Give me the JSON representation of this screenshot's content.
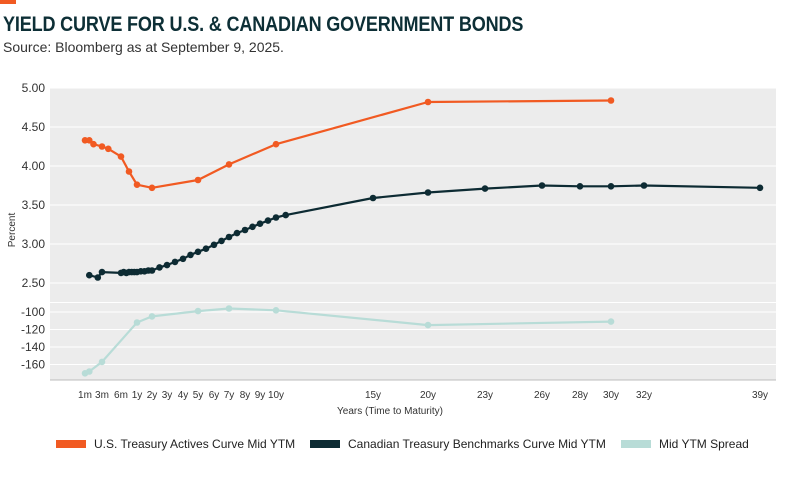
{
  "title": "YIELD CURVE FOR U.S. & CANADIAN GOVERNMENT BONDS",
  "subtitle": "Source: Bloomberg as at September 9, 2025.",
  "colors": {
    "accent": "#f15a22",
    "us": "#f15a22",
    "ca": "#0d2b33",
    "spread": "#b8dcd7",
    "plot_bg": "#ececec",
    "grid": "#ffffff",
    "title": "#0d2f36"
  },
  "chart_data": {
    "type": "line",
    "xlabel": "Years (Time to Maturity)",
    "ylabel": "Percent",
    "x_ticks": [
      "1m",
      "3m",
      "6m",
      "1y",
      "2y",
      "3y",
      "4y",
      "5y",
      "6y",
      "7y",
      "8y",
      "9y",
      "10y",
      "15y",
      "20y",
      "23y",
      "26y",
      "28y",
      "30y",
      "32y",
      "39y"
    ],
    "y_ticks_upper": [
      "5.00",
      "4.50",
      "4.00",
      "3.50",
      "3.00",
      "2.50"
    ],
    "y_ticks_lower": [
      "-100",
      "-120",
      "-140",
      "-160"
    ],
    "ylim_upper": [
      2.3,
      5.0
    ],
    "ylim_lower": [
      -172,
      -97
    ],
    "grid": true,
    "legend_position": "bottom",
    "series": [
      {
        "name": "U.S. Treasury Actives Curve Mid YTM",
        "axis": "upper",
        "points": [
          {
            "x": 1,
            "y": 4.33
          },
          {
            "x": 1.5,
            "y": 4.33
          },
          {
            "x": 2,
            "y": 4.28
          },
          {
            "x": 3,
            "y": 4.25
          },
          {
            "x": 4,
            "y": 4.22
          },
          {
            "x": 6,
            "y": 4.12
          },
          {
            "x": 9,
            "y": 3.93
          },
          {
            "x": 12,
            "y": 3.76
          },
          {
            "x": 24,
            "y": 3.72
          },
          {
            "x": 60,
            "y": 3.82
          },
          {
            "x": 84,
            "y": 4.02
          },
          {
            "x": 120,
            "y": 4.28
          },
          {
            "x": 252,
            "y": 4.82
          },
          {
            "x": 360,
            "y": 4.84
          }
        ]
      },
      {
        "name": "Canadian Treasury Benchmarks Curve Mid YTM",
        "axis": "upper",
        "points": [
          {
            "x": 1.5,
            "y": 2.6
          },
          {
            "x": 2.5,
            "y": 2.57
          },
          {
            "x": 3,
            "y": 2.64
          },
          {
            "x": 6,
            "y": 2.63
          },
          {
            "x": 7,
            "y": 2.64
          },
          {
            "x": 8,
            "y": 2.63
          },
          {
            "x": 9,
            "y": 2.64
          },
          {
            "x": 10,
            "y": 2.64
          },
          {
            "x": 11,
            "y": 2.64
          },
          {
            "x": 12,
            "y": 2.64
          },
          {
            "x": 15,
            "y": 2.65
          },
          {
            "x": 18,
            "y": 2.65
          },
          {
            "x": 21,
            "y": 2.66
          },
          {
            "x": 24,
            "y": 2.66
          },
          {
            "x": 30,
            "y": 2.7
          },
          {
            "x": 36,
            "y": 2.73
          },
          {
            "x": 42,
            "y": 2.77
          },
          {
            "x": 48,
            "y": 2.81
          },
          {
            "x": 54,
            "y": 2.86
          },
          {
            "x": 60,
            "y": 2.9
          },
          {
            "x": 66,
            "y": 2.94
          },
          {
            "x": 72,
            "y": 2.99
          },
          {
            "x": 78,
            "y": 3.04
          },
          {
            "x": 84,
            "y": 3.09
          },
          {
            "x": 90,
            "y": 3.14
          },
          {
            "x": 96,
            "y": 3.18
          },
          {
            "x": 102,
            "y": 3.22
          },
          {
            "x": 108,
            "y": 3.26
          },
          {
            "x": 114,
            "y": 3.3
          },
          {
            "x": 120,
            "y": 3.34
          },
          {
            "x": 126,
            "y": 3.37
          },
          {
            "x": 180,
            "y": 3.59
          },
          {
            "x": 252,
            "y": 3.66
          },
          {
            "x": 276,
            "y": 3.71
          },
          {
            "x": 312,
            "y": 3.75
          },
          {
            "x": 336,
            "y": 3.74
          },
          {
            "x": 360,
            "y": 3.74
          },
          {
            "x": 384,
            "y": 3.75
          },
          {
            "x": 468,
            "y": 3.72
          }
        ]
      },
      {
        "name": "Mid YTM Spread",
        "axis": "lower",
        "points": [
          {
            "x": 1,
            "y": -170
          },
          {
            "x": 1.5,
            "y": -168
          },
          {
            "x": 3,
            "y": -157
          },
          {
            "x": 12,
            "y": -112
          },
          {
            "x": 24,
            "y": -105
          },
          {
            "x": 60,
            "y": -99
          },
          {
            "x": 84,
            "y": -96
          },
          {
            "x": 120,
            "y": -98
          },
          {
            "x": 252,
            "y": -115
          },
          {
            "x": 360,
            "y": -111
          }
        ]
      }
    ]
  }
}
